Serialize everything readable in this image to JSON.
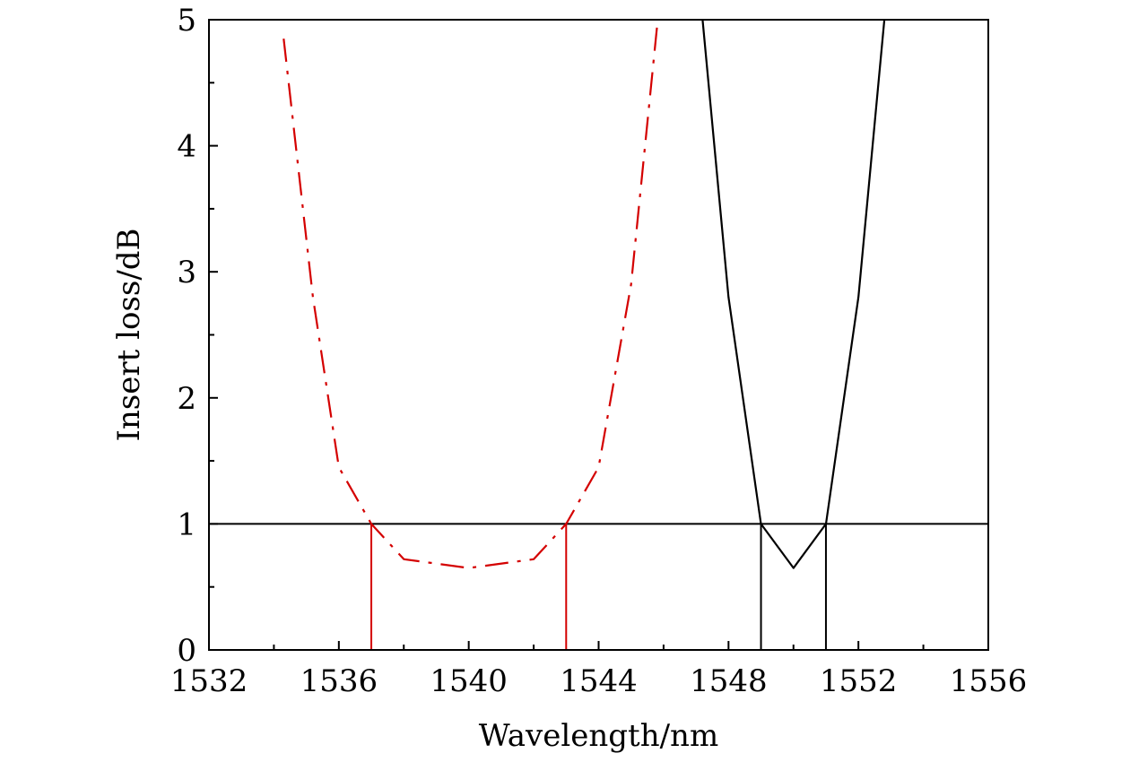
{
  "chart_data": {
    "type": "line",
    "xlabel": "Wavelength/nm",
    "ylabel": "Insert loss/dB",
    "xlim": [
      1532,
      1556
    ],
    "ylim": [
      0,
      5
    ],
    "x_ticks": [
      1532,
      1536,
      1540,
      1544,
      1548,
      1552,
      1556
    ],
    "y_ticks": [
      0,
      1,
      2,
      3,
      4,
      5
    ],
    "x_tick_labels": [
      "1532",
      "1536",
      "1540",
      "1544",
      "1548",
      "1552",
      "1556"
    ],
    "y_tick_labels": [
      "0",
      "1",
      "2",
      "3",
      "4",
      "5"
    ],
    "grid": false,
    "legend": "none",
    "series": [
      {
        "color": "#d40000",
        "style": "dash-dot",
        "x": [
          1534.3,
          1535.2,
          1536.0,
          1537.0,
          1538.0,
          1540.0,
          1542.0,
          1543.0,
          1544.0,
          1545.0,
          1545.8
        ],
        "y": [
          4.85,
          2.8,
          1.45,
          1.0,
          0.72,
          0.65,
          0.72,
          1.0,
          1.45,
          2.9,
          4.95
        ]
      },
      {
        "color": "#000000",
        "style": "solid",
        "x": [
          1547.2,
          1548.0,
          1549.0,
          1550.0,
          1551.0,
          1552.0,
          1552.8
        ],
        "y": [
          5.0,
          2.8,
          1.0,
          0.65,
          1.0,
          2.8,
          5.0
        ]
      }
    ],
    "reference_lines": [
      {
        "orientation": "horizontal",
        "y": 1.0,
        "color": "#000000"
      },
      {
        "orientation": "vertical",
        "x": 1537.0,
        "y_to": 1.0,
        "color": "#d40000"
      },
      {
        "orientation": "vertical",
        "x": 1543.0,
        "y_to": 1.0,
        "color": "#d40000"
      },
      {
        "orientation": "vertical",
        "x": 1549.0,
        "y_to": 1.0,
        "color": "#000000"
      },
      {
        "orientation": "vertical",
        "x": 1551.0,
        "y_to": 1.0,
        "color": "#000000"
      }
    ]
  }
}
